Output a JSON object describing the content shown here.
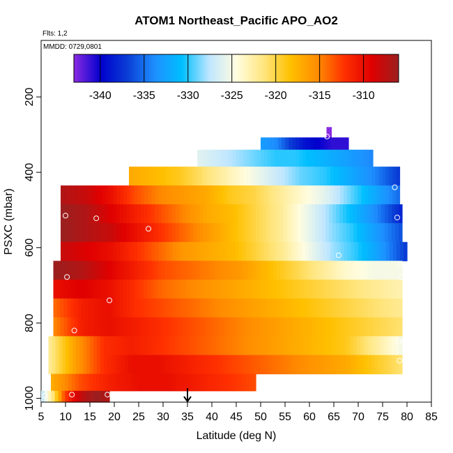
{
  "chart_data": {
    "type": "heatmap",
    "title": "ATOM1 Northeast_Pacific APO_AO2",
    "flights_label": "Flts: 1,2",
    "mmdd_label": "MMDD: 0729,0801",
    "xlabel": "Latitude (deg N)",
    "ylabel": "PSXC (mbar)",
    "xlim": [
      5,
      85
    ],
    "ylim": [
      1010,
      50
    ],
    "y_inverted": true,
    "xticks": [
      "5",
      "10",
      "15",
      "20",
      "25",
      "30",
      "35",
      "40",
      "45",
      "50",
      "55",
      "60",
      "65",
      "70",
      "75",
      "80",
      "85"
    ],
    "yticks": [
      "200",
      "400",
      "600",
      "800",
      "1000"
    ],
    "colorbar": {
      "range": [
        -343,
        -306
      ],
      "ticks": [
        "-340",
        "-335",
        "-330",
        "-325",
        "-320",
        "-315",
        "-310"
      ],
      "tick_values": [
        -340,
        -335,
        -330,
        -325,
        -320,
        -315,
        -310
      ],
      "colors": [
        "#8a2be2",
        "#0000cd",
        "#0a3fd6",
        "#1e90ff",
        "#00bfff",
        "#bfe6ff",
        "#fffde0",
        "#ffe680",
        "#ffc000",
        "#ff8c00",
        "#ff3000",
        "#e00000",
        "#9b1f1f"
      ]
    },
    "marker_latitude": 35,
    "value_bands": [
      {
        "p": 295,
        "lat_start": 63.5,
        "lat_end": 64.5,
        "values": [
          -343,
          -343
        ]
      },
      {
        "p": 320,
        "lat_start": 50,
        "lat_end": 68,
        "values": [
          -333,
          -334,
          -337,
          -339,
          -340,
          -341,
          -341
        ]
      },
      {
        "p": 360,
        "lat_start": 37,
        "lat_end": 73,
        "values": [
          -326,
          -327,
          -328,
          -329,
          -330,
          -330,
          -331,
          -332,
          -333,
          -334
        ]
      },
      {
        "p": 410,
        "lat_start": 23,
        "lat_end": 78.5,
        "values": [
          -317,
          -318,
          -319,
          -321,
          -323,
          -325,
          -327,
          -329,
          -330,
          -332,
          -334,
          -337
        ]
      },
      {
        "p": 460,
        "lat_start": 9,
        "lat_end": 78.5,
        "values": [
          -307,
          -308,
          -310,
          -313,
          -315,
          -316,
          -317,
          -319,
          -320,
          -322,
          -324,
          -326,
          -329,
          -332,
          -335
        ]
      },
      {
        "p": 510,
        "lat_start": 9,
        "lat_end": 79,
        "values": [
          -306,
          -307,
          -309,
          -311,
          -313,
          -315,
          -317,
          -318,
          -320,
          -322,
          -325,
          -328,
          -331,
          -334,
          -338
        ]
      },
      {
        "p": 560,
        "lat_start": 9,
        "lat_end": 79,
        "values": [
          -306,
          -307,
          -308,
          -310,
          -312,
          -314,
          -316,
          -318,
          -320,
          -322,
          -325,
          -328,
          -330,
          -333,
          -336
        ]
      },
      {
        "p": 610,
        "lat_start": 9,
        "lat_end": 80,
        "values": [
          -308,
          -309,
          -310,
          -312,
          -314,
          -316,
          -317,
          -318,
          -320,
          -322,
          -325,
          -328,
          -330,
          -333,
          -337
        ]
      },
      {
        "p": 660,
        "lat_start": 7.5,
        "lat_end": 79,
        "values": [
          -306,
          -307,
          -309,
          -311,
          -313,
          -314,
          -315,
          -316,
          -318,
          -320,
          -322,
          -324,
          -325,
          -325
        ]
      },
      {
        "p": 710,
        "lat_start": 7.5,
        "lat_end": 79,
        "values": [
          -310,
          -309,
          -310,
          -312,
          -314,
          -315,
          -316,
          -317,
          -318,
          -319,
          -320,
          -321,
          -322,
          -323
        ]
      },
      {
        "p": 760,
        "lat_start": 7.5,
        "lat_end": 79,
        "values": [
          -314,
          -311,
          -310,
          -312,
          -313,
          -314,
          -315,
          -316,
          -317,
          -318,
          -319,
          -320,
          -321,
          -322
        ]
      },
      {
        "p": 810,
        "lat_start": 7.5,
        "lat_end": 79,
        "values": [
          -315,
          -311,
          -310,
          -311,
          -312,
          -313,
          -314,
          -315,
          -316,
          -317,
          -318,
          -319,
          -320,
          -321
        ]
      },
      {
        "p": 860,
        "lat_start": 6.5,
        "lat_end": 79,
        "values": [
          -322,
          -316,
          -312,
          -311,
          -312,
          -313,
          -314,
          -315,
          -316,
          -317,
          -318,
          -319,
          -322,
          -325
        ]
      },
      {
        "p": 910,
        "lat_start": 6.5,
        "lat_end": 79,
        "values": [
          -322,
          -316,
          -312,
          -310,
          -310,
          -311,
          -312,
          -313,
          -314,
          -315,
          -316,
          -317,
          -319,
          -321
        ]
      },
      {
        "p": 960,
        "lat_start": 7,
        "lat_end": 49,
        "values": [
          -317,
          -313,
          -311,
          -310,
          -310,
          -311,
          -312,
          -313
        ]
      },
      {
        "p": 1000,
        "lat_start": 5,
        "lat_end": 19,
        "values": [
          -327,
          -321,
          -313,
          -309,
          -307,
          -306,
          -307
        ]
      }
    ],
    "sample_points": [
      {
        "lat": 63.6,
        "p": 305
      },
      {
        "lat": 77.5,
        "p": 440
      },
      {
        "lat": 10,
        "p": 515
      },
      {
        "lat": 16.3,
        "p": 522
      },
      {
        "lat": 27,
        "p": 550
      },
      {
        "lat": 78,
        "p": 520
      },
      {
        "lat": 66,
        "p": 620
      },
      {
        "lat": 10.3,
        "p": 678
      },
      {
        "lat": 78.5,
        "p": 645
      },
      {
        "lat": 78.8,
        "p": 678
      },
      {
        "lat": 19,
        "p": 740
      },
      {
        "lat": 11.8,
        "p": 820
      },
      {
        "lat": 78.3,
        "p": 850
      },
      {
        "lat": 78.5,
        "p": 900
      },
      {
        "lat": 11.3,
        "p": 990
      },
      {
        "lat": 18.6,
        "p": 990
      },
      {
        "lat": 5.8,
        "p": 993
      }
    ]
  }
}
